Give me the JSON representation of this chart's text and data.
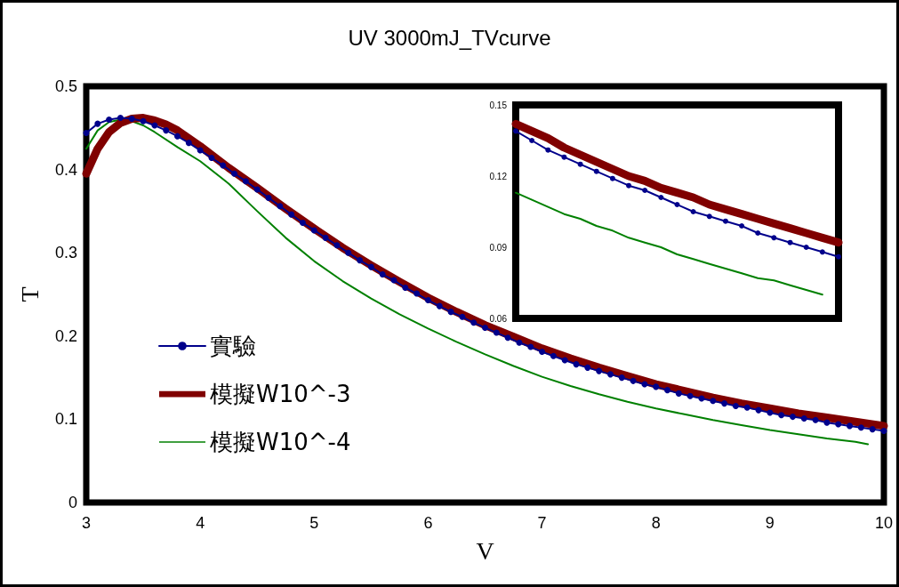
{
  "chart_data": [
    {
      "type": "line",
      "title": "UV 3000mJ_TVcurve",
      "xlabel": "V",
      "ylabel": "T",
      "xlim": [
        3,
        10
      ],
      "xticks": [
        3,
        4,
        5,
        6,
        7,
        8,
        9,
        10
      ],
      "ylim": [
        0,
        0.5
      ],
      "yticks": [
        0,
        0.1,
        0.2,
        0.3,
        0.4,
        0.5
      ],
      "grid": false,
      "legend": "bottom left",
      "series": [
        {
          "name": "實驗",
          "color": "#00008b",
          "marker": "circle",
          "x": [
            3.0,
            3.1,
            3.2,
            3.3,
            3.4,
            3.5,
            3.6,
            3.7,
            3.8,
            3.9,
            4.0,
            4.1,
            4.2,
            4.3,
            4.4,
            4.5,
            4.6,
            4.7,
            4.8,
            4.9,
            5.0,
            5.1,
            5.2,
            5.3,
            5.4,
            5.5,
            5.6,
            5.7,
            5.8,
            5.9,
            6.0,
            6.1,
            6.2,
            6.3,
            6.4,
            6.5,
            6.6,
            6.7,
            6.8,
            6.9,
            7.0,
            7.1,
            7.2,
            7.3,
            7.4,
            7.5,
            7.6,
            7.7,
            7.8,
            7.9,
            8.0,
            8.1,
            8.2,
            8.3,
            8.4,
            8.5,
            8.6,
            8.7,
            8.8,
            8.9,
            9.0,
            9.1,
            9.2,
            9.3,
            9.4,
            9.5,
            9.6,
            9.7,
            9.8,
            9.9,
            10.0
          ],
          "values": [
            0.444,
            0.455,
            0.46,
            0.462,
            0.461,
            0.458,
            0.453,
            0.447,
            0.44,
            0.432,
            0.423,
            0.414,
            0.405,
            0.395,
            0.386,
            0.376,
            0.366,
            0.356,
            0.346,
            0.336,
            0.327,
            0.318,
            0.309,
            0.3,
            0.291,
            0.283,
            0.274,
            0.267,
            0.258,
            0.251,
            0.243,
            0.236,
            0.229,
            0.223,
            0.216,
            0.21,
            0.204,
            0.198,
            0.192,
            0.187,
            0.181,
            0.176,
            0.171,
            0.166,
            0.162,
            0.158,
            0.154,
            0.15,
            0.146,
            0.142,
            0.139,
            0.135,
            0.131,
            0.128,
            0.125,
            0.122,
            0.119,
            0.116,
            0.114,
            0.111,
            0.108,
            0.105,
            0.103,
            0.101,
            0.099,
            0.096,
            0.094,
            0.092,
            0.09,
            0.088,
            0.086
          ]
        },
        {
          "name": "模擬W10^-3",
          "color": "#800000",
          "marker": "none",
          "x": [
            3.0,
            3.1,
            3.2,
            3.3,
            3.4,
            3.5,
            3.6,
            3.7,
            3.8,
            4.0,
            4.25,
            4.5,
            4.75,
            5.0,
            5.25,
            5.5,
            5.75,
            6.0,
            6.25,
            6.5,
            6.75,
            7.0,
            7.25,
            7.5,
            7.75,
            8.0,
            8.25,
            8.5,
            8.75,
            9.0,
            9.25,
            9.5,
            9.75,
            10.0
          ],
          "values": [
            0.395,
            0.425,
            0.445,
            0.456,
            0.461,
            0.462,
            0.459,
            0.454,
            0.447,
            0.428,
            0.402,
            0.378,
            0.353,
            0.329,
            0.306,
            0.285,
            0.265,
            0.246,
            0.229,
            0.213,
            0.199,
            0.185,
            0.173,
            0.162,
            0.152,
            0.142,
            0.134,
            0.126,
            0.119,
            0.113,
            0.107,
            0.102,
            0.097,
            0.092
          ]
        },
        {
          "name": "模擬W10^-4",
          "color": "#008000",
          "marker": "none",
          "x": [
            3.0,
            3.1,
            3.2,
            3.3,
            3.4,
            3.5,
            3.6,
            3.8,
            4.0,
            4.25,
            4.5,
            4.75,
            5.0,
            5.25,
            5.5,
            5.75,
            6.0,
            6.25,
            6.5,
            6.75,
            7.0,
            7.25,
            7.5,
            7.75,
            8.0,
            8.25,
            8.5,
            8.75,
            9.0,
            9.25,
            9.5,
            9.75,
            9.86
          ],
          "values": [
            0.425,
            0.447,
            0.457,
            0.46,
            0.458,
            0.453,
            0.445,
            0.427,
            0.41,
            0.383,
            0.35,
            0.318,
            0.29,
            0.266,
            0.245,
            0.226,
            0.209,
            0.193,
            0.178,
            0.164,
            0.151,
            0.14,
            0.13,
            0.121,
            0.113,
            0.106,
            0.099,
            0.093,
            0.087,
            0.082,
            0.077,
            0.073,
            0.07
          ]
        }
      ]
    },
    {
      "type": "line",
      "categories": [
        null,
        null,
        null,
        null,
        null,
        null,
        null,
        null,
        null,
        null,
        null,
        null,
        null,
        null,
        null,
        null,
        null,
        null,
        null,
        null,
        null
      ],
      "ylim": [
        0.06,
        0.15
      ],
      "yticks": [
        0.06,
        0.09,
        0.12,
        0.15
      ],
      "tick_labels": "y",
      "grid": false,
      "series": [
        {
          "color": "#00008b",
          "marker": "circle",
          "values": [
            0.139,
            0.135,
            0.131,
            0.128,
            0.125,
            0.122,
            0.119,
            0.116,
            0.114,
            0.111,
            0.108,
            0.105,
            0.103,
            0.101,
            0.099,
            0.096,
            0.094,
            0.092,
            0.09,
            0.088,
            0.086
          ]
        },
        {
          "color": "#800000",
          "marker": "none",
          "values": [
            0.142,
            0.139,
            0.136,
            0.132,
            0.129,
            0.126,
            0.123,
            0.12,
            0.118,
            0.115,
            0.113,
            0.111,
            0.108,
            0.106,
            0.104,
            0.102,
            0.1,
            0.098,
            0.096,
            0.094,
            0.092
          ]
        },
        {
          "color": "#008000",
          "marker": "none",
          "values": [
            0.113,
            0.11,
            0.107,
            0.104,
            0.102,
            0.099,
            0.097,
            0.094,
            0.092,
            0.09,
            0.087,
            0.085,
            0.083,
            0.081,
            0.079,
            0.077,
            0.076,
            0.074,
            0.072,
            0.07,
            null
          ]
        }
      ]
    }
  ]
}
